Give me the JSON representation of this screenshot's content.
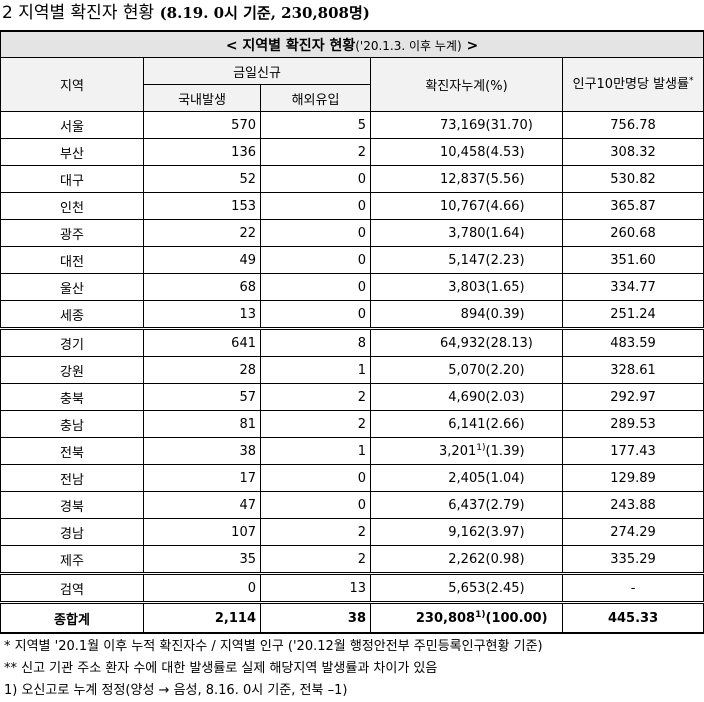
{
  "title": {
    "main": "2 지역별 확진자 현황",
    "sub": "(8.19. 0시 기준, 230,808명)"
  },
  "table": {
    "caption": {
      "main": "< 지역별 확진자 현황",
      "sub": "('20.1.3. 이후 누계)",
      "end": ">"
    },
    "headers": {
      "region": "지역",
      "daily": "금일신규",
      "domestic": "국내발생",
      "overseas": "해외유입",
      "cumulative": "확진자누계(%)",
      "rate": "인구10만명당 발생률",
      "rate_mark": "*"
    },
    "rows": [
      {
        "region": "서울",
        "domestic": "570",
        "overseas": "5",
        "cumulative": "73,169",
        "percent": "(31.70)",
        "rate": "756.78"
      },
      {
        "region": "부산",
        "domestic": "136",
        "overseas": "2",
        "cumulative": "10,458",
        "percent": "(4.53)",
        "rate": "308.32"
      },
      {
        "region": "대구",
        "domestic": "52",
        "overseas": "0",
        "cumulative": "12,837",
        "percent": "(5.56)",
        "rate": "530.82"
      },
      {
        "region": "인천",
        "domestic": "153",
        "overseas": "0",
        "cumulative": "10,767",
        "percent": "(4.66)",
        "rate": "365.87"
      },
      {
        "region": "광주",
        "domestic": "22",
        "overseas": "0",
        "cumulative": "3,780",
        "percent": "(1.64)",
        "rate": "260.68"
      },
      {
        "region": "대전",
        "domestic": "49",
        "overseas": "0",
        "cumulative": "5,147",
        "percent": "(2.23)",
        "rate": "351.60"
      },
      {
        "region": "울산",
        "domestic": "68",
        "overseas": "0",
        "cumulative": "3,803",
        "percent": "(1.65)",
        "rate": "334.77"
      },
      {
        "region": "세종",
        "domestic": "13",
        "overseas": "0",
        "cumulative": "894",
        "percent": "(0.39)",
        "rate": "251.24"
      },
      {
        "region": "경기",
        "domestic": "641",
        "overseas": "8",
        "cumulative": "64,932",
        "percent": "(28.13)",
        "rate": "483.59"
      },
      {
        "region": "강원",
        "domestic": "28",
        "overseas": "1",
        "cumulative": "5,070",
        "percent": "(2.20)",
        "rate": "328.61"
      },
      {
        "region": "충북",
        "domestic": "57",
        "overseas": "2",
        "cumulative": "4,690",
        "percent": "(2.03)",
        "rate": "292.97"
      },
      {
        "region": "충남",
        "domestic": "81",
        "overseas": "2",
        "cumulative": "6,141",
        "percent": "(2.66)",
        "rate": "289.53"
      },
      {
        "region": "전북",
        "domestic": "38",
        "overseas": "1",
        "cumulative": "3,201",
        "cumulative_note": "1)",
        "percent": "(1.39)",
        "rate": "177.43"
      },
      {
        "region": "전남",
        "domestic": "17",
        "overseas": "0",
        "cumulative": "2,405",
        "percent": "(1.04)",
        "rate": "129.89"
      },
      {
        "region": "경북",
        "domestic": "47",
        "overseas": "0",
        "cumulative": "6,437",
        "percent": "(2.79)",
        "rate": "243.88"
      },
      {
        "region": "경남",
        "domestic": "107",
        "overseas": "2",
        "cumulative": "9,162",
        "percent": "(3.97)",
        "rate": "274.29"
      },
      {
        "region": "제주",
        "domestic": "35",
        "overseas": "2",
        "cumulative": "2,262",
        "percent": "(0.98)",
        "rate": "335.29"
      },
      {
        "region": "검역",
        "domestic": "0",
        "overseas": "13",
        "cumulative": "5,653",
        "percent": "(2.45)",
        "rate": "-"
      }
    ],
    "total": {
      "region": "종합계",
      "domestic": "2,114",
      "overseas": "38",
      "cumulative": "230,808",
      "cumulative_note": "1)",
      "percent": "(100.00)",
      "rate": "445.33"
    }
  },
  "notes": [
    "* 지역별 '20.1월 이후 누적 확진자수 / 지역별 인구 ('20.12월 행정안전부 주민등록인구현황 기준)",
    "** 신고 기관 주소 환자 수에 대한 발생률로 실제 해당지역 발생률과 차이가 있음",
    "1) 오신고로 누계 정정(양성 → 음성, 8.16. 0시 기준, 전북 –1)"
  ]
}
